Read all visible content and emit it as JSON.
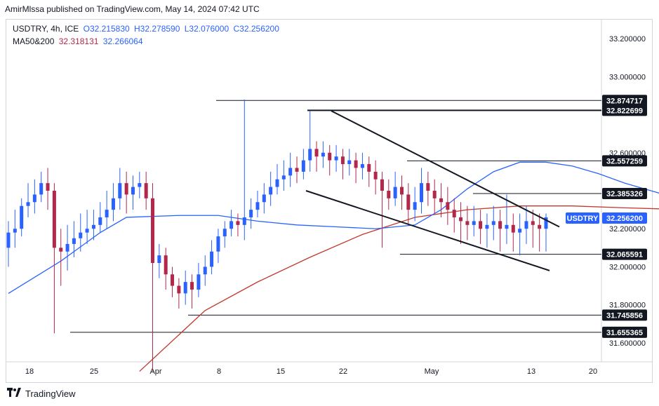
{
  "header": {
    "published": "AmirMlssa published on TradingView.com, May 14, 2024 07:42 UTC"
  },
  "legend": {
    "symbol": "USDTRY, 4h, ICE",
    "open": "O32.215830",
    "high": "H32.278590",
    "low": "L32.076000",
    "close": "C32.256200",
    "ma_label": "MA50&200",
    "ma50": "32.318131",
    "ma200": "32.266064"
  },
  "footer": {
    "brand": "TradingView",
    "logo": "tv-logo-icon"
  },
  "colors": {
    "up": "#2962ff",
    "down": "#b2274a",
    "ma50": "#2962ff",
    "ma200": "#c0392b",
    "price_badge": "#2962ff"
  },
  "chart_data": {
    "type": "candlestick",
    "symbol": "USDTRY",
    "timeframe": "4h",
    "ylim": [
      31.5,
      33.3
    ],
    "y_ticks": [
      "33.200000",
      "33.000000",
      "32.600000",
      "32.200000",
      "32.000000",
      "31.800000",
      "31.600000"
    ],
    "x_ticks": [
      "18",
      "25",
      "Apr",
      "8",
      "15",
      "22",
      "May",
      "13",
      "20"
    ],
    "levels": [
      {
        "label": "32.874717",
        "value": 32.874717
      },
      {
        "label": "32.822699",
        "value": 32.822699
      },
      {
        "label": "32.557259",
        "value": 32.557259
      },
      {
        "label": "32.385326",
        "value": 32.385326
      },
      {
        "label": "32.065591",
        "value": 32.065591
      },
      {
        "label": "31.745856",
        "value": 31.745856
      },
      {
        "label": "31.655365",
        "value": 31.655365
      }
    ],
    "current_price": {
      "symbol": "USDTRY",
      "label": "32.256200",
      "value": 32.2562
    },
    "trendlines": [
      {
        "from": [
          "Apr 19",
          32.82
        ],
        "to": [
          "May 14",
          32.21
        ]
      },
      {
        "from": [
          "Apr 17",
          32.39
        ],
        "to": [
          "May 15",
          31.98
        ]
      }
    ],
    "ma50": [
      [
        0,
        31.86
      ],
      [
        8,
        32.03
      ],
      [
        14,
        32.18
      ],
      [
        18,
        32.26
      ],
      [
        26,
        32.27
      ],
      [
        32,
        32.27
      ],
      [
        38,
        32.24
      ],
      [
        44,
        32.22
      ],
      [
        50,
        32.21
      ],
      [
        56,
        32.2
      ],
      [
        62,
        32.22
      ],
      [
        66,
        32.3
      ],
      [
        70,
        32.41
      ],
      [
        74,
        32.5
      ],
      [
        78,
        32.55
      ],
      [
        82,
        32.55
      ],
      [
        86,
        32.53
      ],
      [
        90,
        32.49
      ],
      [
        94,
        32.44
      ],
      [
        98,
        32.4
      ],
      [
        102,
        32.36
      ],
      [
        104,
        32.32
      ]
    ],
    "ma200": [
      [
        20,
        31.45
      ],
      [
        30,
        31.77
      ],
      [
        38,
        31.92
      ],
      [
        46,
        32.05
      ],
      [
        54,
        32.17
      ],
      [
        62,
        32.26
      ],
      [
        70,
        32.3
      ],
      [
        78,
        32.32
      ],
      [
        86,
        32.32
      ],
      [
        94,
        32.31
      ],
      [
        104,
        32.3
      ]
    ],
    "candles": [
      [
        0,
        32.1,
        32.18,
        32.24,
        32.0
      ],
      [
        1,
        32.18,
        32.2,
        32.3,
        32.1
      ],
      [
        2,
        32.2,
        32.32,
        32.36,
        32.16
      ],
      [
        3,
        32.32,
        32.34,
        32.44,
        32.26
      ],
      [
        4,
        32.34,
        32.38,
        32.46,
        32.28
      ],
      [
        5,
        32.38,
        32.44,
        32.5,
        32.34
      ],
      [
        6,
        32.44,
        32.4,
        32.52,
        32.3
      ],
      [
        7,
        32.4,
        32.1,
        32.44,
        31.65
      ],
      [
        8,
        32.1,
        32.08,
        32.2,
        31.9
      ],
      [
        9,
        32.08,
        32.12,
        32.22,
        31.98
      ],
      [
        10,
        32.12,
        32.15,
        32.24,
        32.05
      ],
      [
        11,
        32.15,
        32.18,
        32.28,
        32.08
      ],
      [
        12,
        32.18,
        32.2,
        32.3,
        32.12
      ],
      [
        13,
        32.2,
        32.22,
        32.3,
        32.14
      ],
      [
        14,
        32.22,
        32.26,
        32.34,
        32.18
      ],
      [
        15,
        32.26,
        32.3,
        32.4,
        32.2
      ],
      [
        16,
        32.3,
        32.36,
        32.44,
        32.24
      ],
      [
        17,
        32.36,
        32.44,
        32.52,
        32.3
      ],
      [
        18,
        32.44,
        32.38,
        32.5,
        32.28
      ],
      [
        19,
        32.38,
        32.42,
        32.48,
        32.3
      ],
      [
        20,
        32.42,
        32.44,
        32.5,
        32.36
      ],
      [
        21,
        32.44,
        32.36,
        32.5,
        32.3
      ],
      [
        22,
        32.36,
        32.02,
        32.44,
        31.45
      ],
      [
        23,
        32.02,
        32.06,
        32.12,
        31.94
      ],
      [
        24,
        32.06,
        31.96,
        32.1,
        31.88
      ],
      [
        25,
        31.96,
        31.9,
        32.0,
        31.84
      ],
      [
        26,
        31.9,
        31.86,
        31.94,
        31.78
      ],
      [
        27,
        31.86,
        31.92,
        31.98,
        31.8
      ],
      [
        28,
        31.92,
        31.88,
        31.96,
        31.78
      ],
      [
        29,
        31.88,
        31.96,
        32.02,
        31.84
      ],
      [
        30,
        31.96,
        32.0,
        32.06,
        31.9
      ],
      [
        31,
        32.0,
        32.08,
        32.14,
        31.96
      ],
      [
        32,
        32.08,
        32.16,
        32.2,
        32.02
      ],
      [
        33,
        32.16,
        32.2,
        32.24,
        32.1
      ],
      [
        34,
        32.2,
        32.24,
        32.3,
        32.16
      ],
      [
        35,
        32.24,
        32.22,
        32.28,
        32.16
      ],
      [
        36,
        32.22,
        32.26,
        32.88,
        32.14
      ],
      [
        37,
        32.26,
        32.3,
        32.36,
        32.2
      ],
      [
        38,
        32.3,
        32.34,
        32.4,
        32.26
      ],
      [
        39,
        32.34,
        32.38,
        32.44,
        32.28
      ],
      [
        40,
        32.38,
        32.42,
        32.5,
        32.32
      ],
      [
        41,
        32.42,
        32.46,
        32.54,
        32.38
      ],
      [
        42,
        32.46,
        32.48,
        32.56,
        32.4
      ],
      [
        43,
        32.48,
        32.52,
        32.6,
        32.42
      ],
      [
        44,
        32.52,
        32.5,
        32.58,
        32.44
      ],
      [
        45,
        32.5,
        32.56,
        32.62,
        32.46
      ],
      [
        46,
        32.56,
        32.62,
        32.82,
        32.5
      ],
      [
        47,
        32.62,
        32.58,
        32.66,
        32.5
      ],
      [
        48,
        32.58,
        32.6,
        32.66,
        32.52
      ],
      [
        49,
        32.6,
        32.56,
        32.64,
        32.48
      ],
      [
        50,
        32.56,
        32.58,
        32.64,
        32.5
      ],
      [
        51,
        32.58,
        32.54,
        32.62,
        32.46
      ],
      [
        52,
        32.54,
        32.56,
        32.62,
        32.48
      ],
      [
        53,
        32.56,
        32.52,
        32.6,
        32.44
      ],
      [
        54,
        32.52,
        32.54,
        32.6,
        32.46
      ],
      [
        55,
        32.54,
        32.5,
        32.58,
        32.42
      ],
      [
        56,
        32.5,
        32.46,
        32.56,
        32.38
      ],
      [
        57,
        32.46,
        32.4,
        32.5,
        32.1
      ],
      [
        58,
        32.4,
        32.36,
        32.46,
        32.3
      ],
      [
        59,
        32.36,
        32.42,
        32.5,
        32.32
      ],
      [
        60,
        32.42,
        32.38,
        32.48,
        32.3
      ],
      [
        61,
        32.38,
        32.3,
        32.44,
        32.22
      ],
      [
        62,
        32.3,
        32.34,
        32.42,
        32.24
      ],
      [
        63,
        32.34,
        32.44,
        32.52,
        32.28
      ],
      [
        64,
        32.44,
        32.4,
        32.5,
        32.32
      ],
      [
        65,
        32.4,
        32.36,
        32.46,
        32.28
      ],
      [
        66,
        32.36,
        32.34,
        32.44,
        32.26
      ],
      [
        67,
        32.34,
        32.3,
        32.42,
        32.22
      ],
      [
        68,
        32.3,
        32.26,
        32.36,
        32.18
      ],
      [
        69,
        32.26,
        32.24,
        32.34,
        32.12
      ],
      [
        70,
        32.24,
        32.22,
        32.32,
        32.14
      ],
      [
        71,
        32.22,
        32.24,
        32.32,
        32.16
      ],
      [
        72,
        32.24,
        32.2,
        32.3,
        32.12
      ],
      [
        73,
        32.2,
        32.22,
        32.28,
        32.1
      ],
      [
        74,
        32.22,
        32.24,
        32.32,
        32.14
      ],
      [
        75,
        32.24,
        32.2,
        32.3,
        32.08
      ],
      [
        76,
        32.2,
        32.22,
        32.38,
        32.12
      ],
      [
        77,
        32.22,
        32.18,
        32.28,
        32.08
      ],
      [
        78,
        32.18,
        32.2,
        32.28,
        32.06
      ],
      [
        79,
        32.2,
        32.24,
        32.32,
        32.12
      ],
      [
        80,
        32.24,
        32.22,
        32.3,
        32.1
      ],
      [
        81,
        32.22,
        32.2,
        32.28,
        32.08
      ],
      [
        82,
        32.2,
        32.26,
        32.28,
        32.08
      ]
    ]
  }
}
